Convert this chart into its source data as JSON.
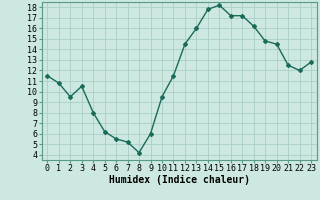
{
  "x": [
    0,
    1,
    2,
    3,
    4,
    5,
    6,
    7,
    8,
    9,
    10,
    11,
    12,
    13,
    14,
    15,
    16,
    17,
    18,
    19,
    20,
    21,
    22,
    23
  ],
  "y": [
    11.5,
    10.8,
    9.5,
    10.5,
    8.0,
    6.2,
    5.5,
    5.2,
    4.2,
    6.0,
    9.5,
    11.5,
    14.5,
    16.0,
    17.8,
    18.2,
    17.2,
    17.2,
    16.2,
    14.8,
    14.5,
    12.5,
    12.0,
    12.8
  ],
  "line_color": "#1a6b5a",
  "marker": "D",
  "marker_size": 2,
  "bg_color": "#cce8e0",
  "grid_color": "#aacfc8",
  "xlabel": "Humidex (Indice chaleur)",
  "xlabel_fontsize": 7,
  "xlim": [
    -0.5,
    23.5
  ],
  "ylim": [
    3.5,
    18.5
  ],
  "yticks": [
    4,
    5,
    6,
    7,
    8,
    9,
    10,
    11,
    12,
    13,
    14,
    15,
    16,
    17,
    18
  ],
  "xticks": [
    0,
    1,
    2,
    3,
    4,
    5,
    6,
    7,
    8,
    9,
    10,
    11,
    12,
    13,
    14,
    15,
    16,
    17,
    18,
    19,
    20,
    21,
    22,
    23
  ],
  "tick_fontsize": 6,
  "line_width": 1.0
}
